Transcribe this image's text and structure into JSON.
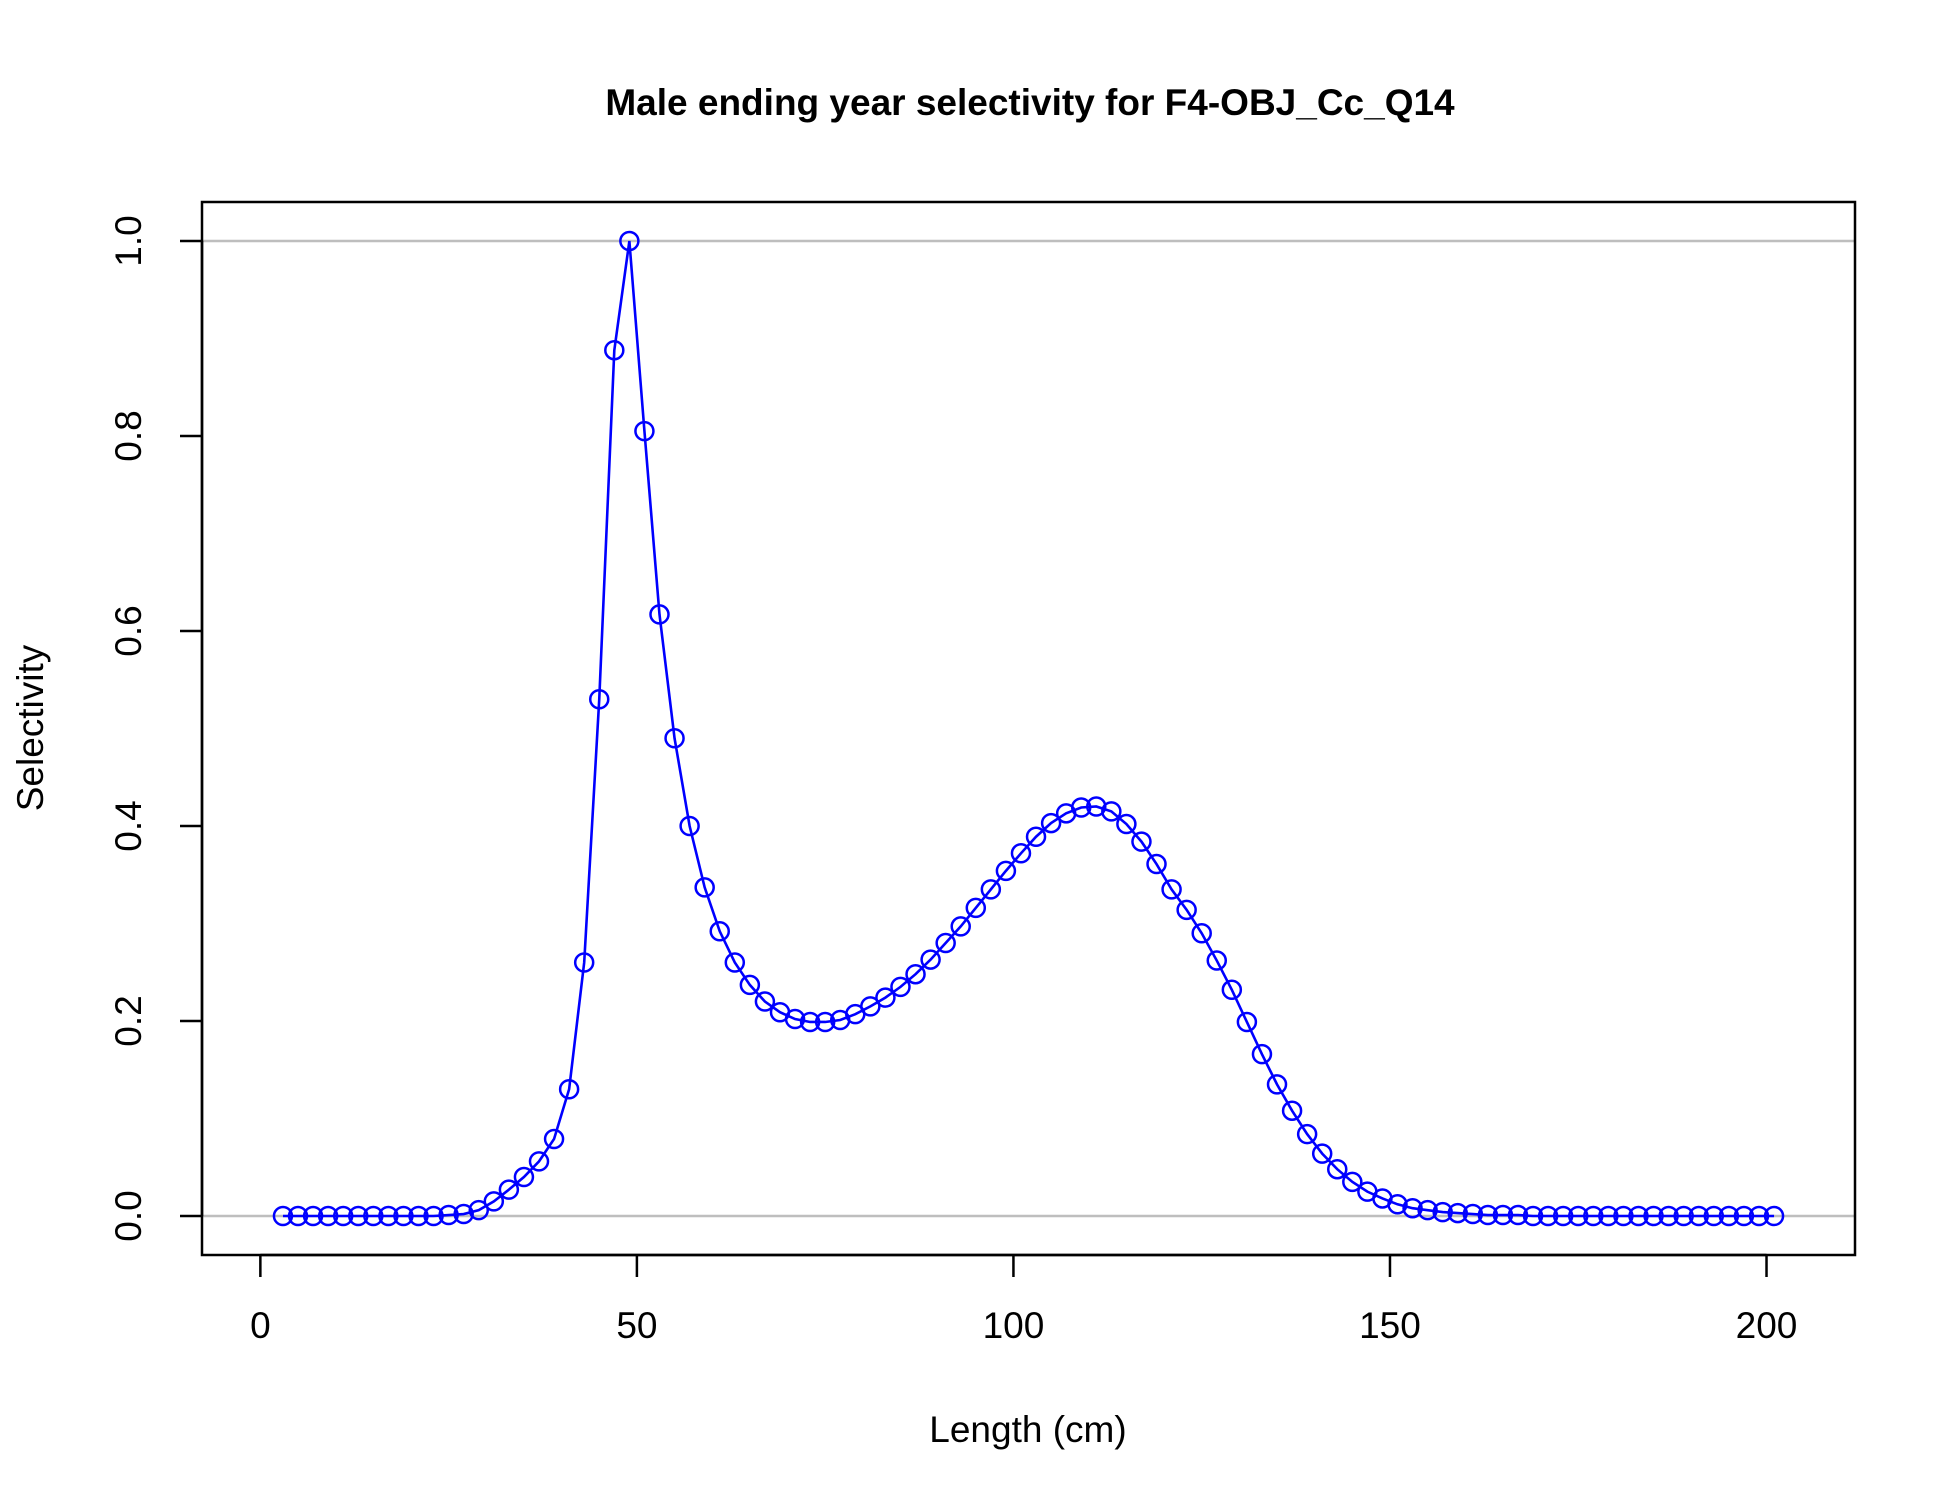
{
  "chart_data": {
    "type": "line",
    "title": "Male ending year selectivity for F4-OBJ_Cc_Q14",
    "xlabel": "Length (cm)",
    "ylabel": "Selectivity",
    "xlim": [
      -7.75,
      211.75
    ],
    "ylim": [
      -0.04,
      1.04
    ],
    "xticks": [
      0,
      50,
      100,
      150,
      200
    ],
    "yticks": [
      0.0,
      0.2,
      0.4,
      0.6,
      0.8,
      1.0
    ],
    "xtick_labels": [
      "0",
      "50",
      "100",
      "150",
      "200"
    ],
    "ytick_labels": [
      "0.0",
      "0.2",
      "0.4",
      "0.6",
      "0.8",
      "1.0"
    ],
    "reference_lines": [
      0,
      1
    ],
    "series_color": "#0000ff",
    "reference_color": "#bebebe",
    "series": [
      {
        "x": [
          3,
          5,
          7,
          9,
          11,
          13,
          15,
          17,
          19,
          21,
          23,
          25,
          27,
          29,
          31,
          33,
          35,
          37,
          39,
          41,
          43,
          45,
          47,
          49,
          51,
          53,
          55,
          57,
          59,
          61,
          63,
          65,
          67,
          69,
          71,
          73,
          75,
          77,
          79,
          81,
          83,
          85,
          87,
          89,
          91,
          93,
          95,
          97,
          99,
          101,
          103,
          105,
          107,
          109,
          111,
          113,
          115,
          117,
          119,
          121,
          123,
          125,
          127,
          129,
          131,
          133,
          135,
          137,
          139,
          141,
          143,
          145,
          147,
          149,
          151,
          153,
          155,
          157,
          159,
          161,
          163,
          165,
          167,
          169,
          171,
          173,
          175,
          177,
          179,
          181,
          183,
          185,
          187,
          189,
          191,
          193,
          195,
          197,
          199,
          201
        ],
        "values": [
          0,
          0,
          0,
          0,
          0,
          0,
          0,
          0,
          0,
          0,
          0,
          0.001,
          0.002,
          0.006,
          0.015,
          0.027,
          0.04,
          0.056,
          0.079,
          0.13,
          0.26,
          0.53,
          0.888,
          1.0,
          0.805,
          0.617,
          0.49,
          0.4,
          0.337,
          0.292,
          0.26,
          0.237,
          0.22,
          0.209,
          0.202,
          0.199,
          0.199,
          0.201,
          0.207,
          0.215,
          0.224,
          0.235,
          0.248,
          0.263,
          0.28,
          0.297,
          0.316,
          0.335,
          0.354,
          0.372,
          0.389,
          0.403,
          0.413,
          0.419,
          0.42,
          0.415,
          0.402,
          0.384,
          0.361,
          0.335,
          0.314,
          0.29,
          0.262,
          0.232,
          0.199,
          0.166,
          0.135,
          0.108,
          0.084,
          0.064,
          0.048,
          0.035,
          0.025,
          0.018,
          0.012,
          0.008,
          0.006,
          0.004,
          0.003,
          0.002,
          0.001,
          0.001,
          0.001,
          0,
          0,
          0,
          0,
          0,
          0,
          0,
          0,
          0,
          0,
          0,
          0,
          0,
          0,
          0,
          0,
          0
        ]
      }
    ]
  }
}
